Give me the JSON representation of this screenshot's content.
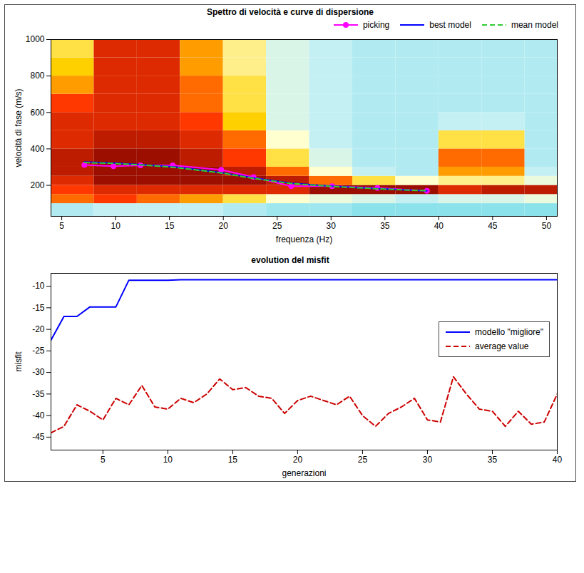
{
  "chart_data": [
    {
      "type": "heatmap",
      "title": "Spettro di velocità e curve di dispersione",
      "x_label": "frequenza (Hz)",
      "y_label": "velocità di fase (m/s)",
      "xlim": [
        4,
        51
      ],
      "xticks": [
        5,
        10,
        15,
        20,
        25,
        30,
        35,
        40,
        45,
        50
      ],
      "ylim": [
        30,
        1000
      ],
      "yticks": [
        200,
        400,
        600,
        800,
        1000
      ],
      "grid": false,
      "legend": "top",
      "heatmap": {
        "x_bins": [
          4,
          8,
          12,
          16,
          20,
          24,
          28,
          32,
          36,
          40,
          44,
          48,
          52
        ],
        "y_bins": [
          30,
          100,
          150,
          200,
          250,
          300,
          400,
          500,
          600,
          700,
          800,
          900,
          1000
        ],
        "values": [
          [
            0.3,
            0.35,
            0.35,
            0.35,
            0.3,
            0.25,
            0.25,
            0.2,
            0.2,
            0.2,
            0.2,
            0.2
          ],
          [
            0.75,
            0.8,
            0.75,
            0.7,
            0.6,
            0.5,
            0.45,
            0.4,
            0.35,
            0.4,
            0.4,
            0.45
          ],
          [
            0.8,
            0.85,
            0.85,
            0.85,
            0.85,
            0.85,
            0.95,
            0.95,
            0.95,
            0.85,
            0.9,
            0.9
          ],
          [
            0.85,
            0.95,
            0.95,
            0.95,
            0.95,
            0.9,
            0.75,
            0.6,
            0.5,
            0.55,
            0.55,
            0.45
          ],
          [
            0.9,
            0.95,
            0.95,
            0.95,
            0.9,
            0.75,
            0.5,
            0.35,
            0.3,
            0.7,
            0.7,
            0.35
          ],
          [
            0.9,
            0.95,
            0.95,
            0.9,
            0.8,
            0.6,
            0.4,
            0.3,
            0.3,
            0.75,
            0.75,
            0.3
          ],
          [
            0.85,
            0.9,
            0.9,
            0.85,
            0.75,
            0.5,
            0.35,
            0.3,
            0.3,
            0.6,
            0.6,
            0.3
          ],
          [
            0.85,
            0.85,
            0.85,
            0.8,
            0.65,
            0.4,
            0.35,
            0.3,
            0.3,
            0.35,
            0.35,
            0.3
          ],
          [
            0.8,
            0.85,
            0.85,
            0.75,
            0.6,
            0.4,
            0.35,
            0.3,
            0.3,
            0.3,
            0.3,
            0.3
          ],
          [
            0.7,
            0.85,
            0.85,
            0.75,
            0.6,
            0.4,
            0.35,
            0.3,
            0.3,
            0.3,
            0.3,
            0.3
          ],
          [
            0.65,
            0.85,
            0.85,
            0.7,
            0.55,
            0.4,
            0.35,
            0.3,
            0.3,
            0.3,
            0.3,
            0.3
          ],
          [
            0.6,
            0.85,
            0.85,
            0.7,
            0.55,
            0.4,
            0.35,
            0.3,
            0.3,
            0.3,
            0.3,
            0.3
          ]
        ]
      },
      "x": [
        7.1,
        9.8,
        12.3,
        15.3,
        19.8,
        22.8,
        26.3,
        30.1,
        34.3,
        38.9
      ],
      "series": [
        {
          "name": "picking",
          "type": "line",
          "color": "#ff00ff",
          "marker": "circle",
          "line_style": "solid",
          "values": [
            312,
            305,
            310,
            310,
            285,
            245,
            195,
            195,
            185,
            170
          ]
        },
        {
          "name": "best model",
          "type": "line",
          "color": "#0000ff",
          "marker": "none",
          "line_style": "solid",
          "values": [
            328,
            322,
            314,
            302,
            270,
            240,
            212,
            195,
            182,
            170
          ]
        },
        {
          "name": "mean model",
          "type": "line",
          "color": "#33cc33",
          "marker": "none",
          "line_style": "dashed",
          "values": [
            325,
            320,
            312,
            300,
            268,
            238,
            210,
            194,
            181,
            170
          ]
        }
      ]
    },
    {
      "type": "line",
      "title": "evolution del misfit",
      "x_label": "generazioni",
      "y_label": "misfit",
      "xlim": [
        1,
        40
      ],
      "xticks": [
        5,
        10,
        15,
        20,
        25,
        30,
        35,
        40
      ],
      "ylim": [
        -48,
        -7
      ],
      "yticks": [
        -45,
        -40,
        -35,
        -30,
        -25,
        -20,
        -15,
        -10
      ],
      "grid": false,
      "legend": "east",
      "x": [
        1,
        2,
        3,
        4,
        5,
        6,
        7,
        8,
        9,
        10,
        11,
        12,
        13,
        14,
        15,
        16,
        17,
        18,
        19,
        20,
        21,
        22,
        23,
        24,
        25,
        26,
        27,
        28,
        29,
        30,
        31,
        32,
        33,
        34,
        35,
        36,
        37,
        38,
        39,
        40
      ],
      "series": [
        {
          "name": "modello \"migliore\"",
          "color": "#0000ff",
          "marker": "none",
          "line_style": "solid",
          "values": [
            -22.5,
            -17,
            -17,
            -14.8,
            -14.8,
            -14.8,
            -8.6,
            -8.6,
            -8.6,
            -8.6,
            -8.5,
            -8.5,
            -8.5,
            -8.5,
            -8.5,
            -8.5,
            -8.5,
            -8.5,
            -8.5,
            -8.5,
            -8.5,
            -8.5,
            -8.5,
            -8.5,
            -8.5,
            -8.5,
            -8.5,
            -8.5,
            -8.5,
            -8.5,
            -8.5,
            -8.5,
            -8.5,
            -8.5,
            -8.5,
            -8.5,
            -8.5,
            -8.5,
            -8.5,
            -8.5
          ]
        },
        {
          "name": "average value",
          "color": "#cc0000",
          "marker": "none",
          "line_style": "dashed",
          "values": [
            -44,
            -42.5,
            -37.5,
            -39,
            -41,
            -36,
            -37.5,
            -33,
            -38,
            -38.5,
            -36,
            -37,
            -35,
            -31.5,
            -34,
            -33.5,
            -35.5,
            -36,
            -39.5,
            -36.5,
            -35.5,
            -36.5,
            -37.5,
            -35.5,
            -40,
            -42.5,
            -39.5,
            -38,
            -36,
            -41,
            -41.5,
            -31,
            -35,
            -38.5,
            -39,
            -42.5,
            -39,
            -42,
            -41.5,
            -35
          ]
        }
      ]
    }
  ]
}
